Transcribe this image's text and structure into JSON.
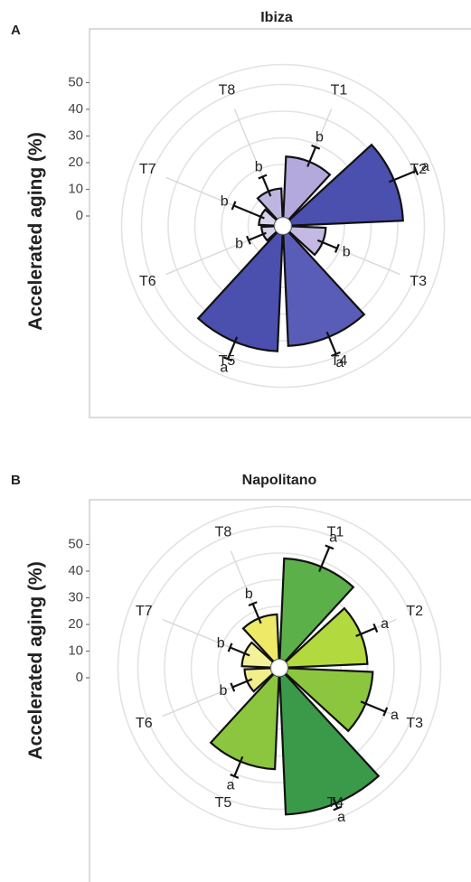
{
  "panels": [
    {
      "letter": "A",
      "title": "Ibiza",
      "ylabel": "Accelerated aging (%)",
      "y_ticks": [
        "50",
        "40",
        "30",
        "20",
        "10",
        "0"
      ],
      "colors": {
        "T1": "#b3a9dc",
        "T2": "#4b4fae",
        "T3": "#c3b9e2",
        "T4": "#5a5db8",
        "T5": "#4b4fae",
        "T6": "#d6d0ea",
        "T7": "#d8d2ec",
        "T8": "#bfb6e0"
      }
    },
    {
      "letter": "B",
      "title": "Napolitano",
      "ylabel": "Accelerated aging (%)",
      "y_ticks": [
        "50",
        "40",
        "30",
        "20",
        "10",
        "0"
      ],
      "colors": {
        "T1": "#5cb04a",
        "T2": "#b2d93d",
        "T3": "#8cc63f",
        "T4": "#3a9a49",
        "T5": "#8cc63f",
        "T6": "#f1ef8c",
        "T7": "#f4f19b",
        "T8": "#efe968"
      }
    }
  ],
  "chart_data": [
    {
      "type": "polar-bar",
      "title": "Ibiza",
      "ylabel": "Accelerated aging (%)",
      "ylim": [
        0,
        50
      ],
      "radial_ticks": [
        0,
        10,
        20,
        30,
        40,
        50
      ],
      "categories": [
        "T1",
        "T2",
        "T3",
        "T4",
        "T5",
        "T6",
        "T7",
        "T8"
      ],
      "values": [
        23,
        42,
        13,
        42,
        44,
        5,
        6,
        11
      ],
      "errors": [
        6,
        9,
        6,
        7,
        7,
        6,
        11,
        6
      ],
      "significance": [
        "b",
        "a",
        "b",
        "a",
        "a",
        "b",
        "b",
        "b"
      ],
      "grid": true
    },
    {
      "type": "polar-bar",
      "title": "Napolitano",
      "ylabel": "Accelerated aging (%)",
      "ylim": [
        0,
        50
      ],
      "radial_ticks": [
        0,
        10,
        20,
        30,
        40,
        50
      ],
      "categories": [
        "T1",
        "T2",
        "T3",
        "T4",
        "T5",
        "T6",
        "T7",
        "T8"
      ],
      "values": [
        38,
        30,
        32,
        52,
        35,
        10,
        11,
        17
      ],
      "errors": [
        8,
        6,
        8,
        2,
        6,
        6,
        6,
        6
      ],
      "significance": [
        "a",
        "a",
        "a",
        "a",
        "a",
        "b",
        "b",
        "b"
      ],
      "grid": true
    }
  ]
}
